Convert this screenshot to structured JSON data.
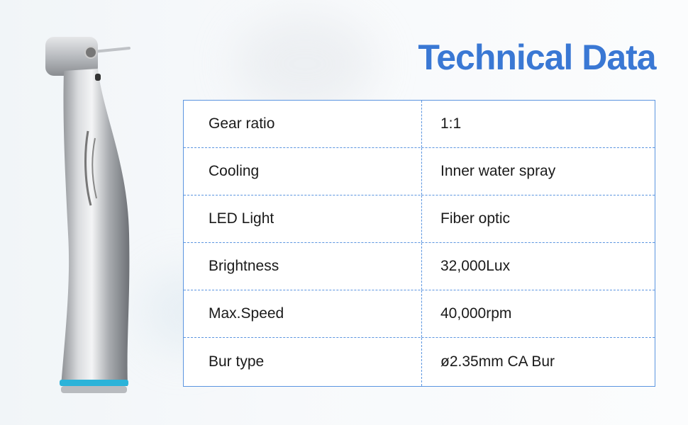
{
  "title": "Technical Data",
  "specs": [
    {
      "label": "Gear ratio",
      "value": "1:1"
    },
    {
      "label": "Cooling",
      "value": "Inner water spray"
    },
    {
      "label": "LED Light",
      "value": "Fiber optic"
    },
    {
      "label": "Brightness",
      "value": "32,000Lux"
    },
    {
      "label": "Max.Speed",
      "value": "40,000rpm"
    },
    {
      "label": "Bur type",
      "value": "ø2.35mm CA Bur"
    }
  ],
  "colors": {
    "accent": "#3a78d4",
    "table_border": "#5b95e0",
    "ring": "#2bb3d9"
  }
}
